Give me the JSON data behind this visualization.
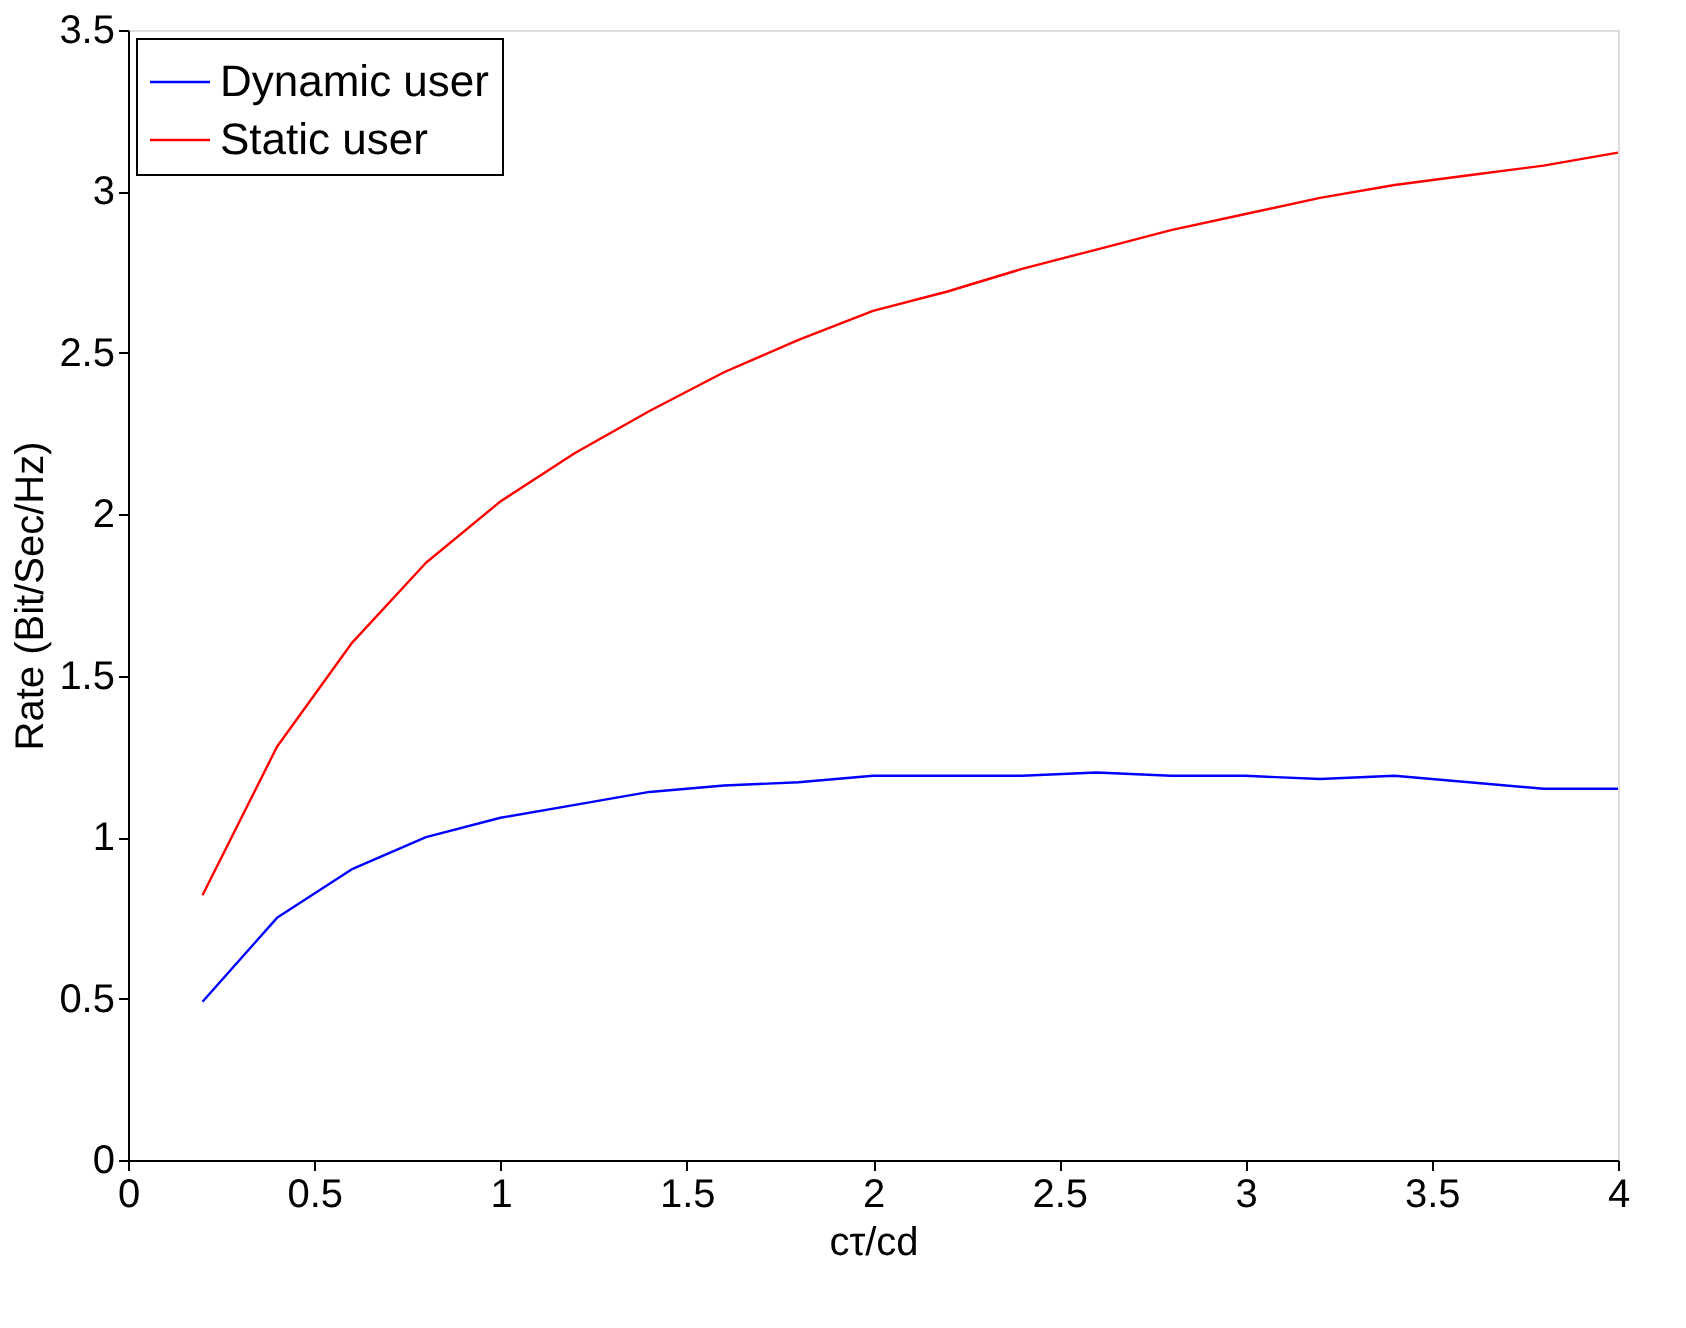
{
  "chart_data": {
    "type": "line",
    "xlabel": "cτ/cd",
    "ylabel": "Rate (Bit/Sec/Hz)",
    "x": [
      0.2,
      0.4,
      0.6,
      0.8,
      1.0,
      1.2,
      1.4,
      1.6,
      1.8,
      2.0,
      2.2,
      2.4,
      2.6,
      2.8,
      3.0,
      3.2,
      3.4,
      3.6,
      3.8,
      4.0
    ],
    "series": [
      {
        "name": "Dynamic user",
        "color": "#0000ff",
        "values": [
          0.49,
          0.75,
          0.9,
          1.0,
          1.06,
          1.1,
          1.14,
          1.16,
          1.17,
          1.19,
          1.19,
          1.19,
          1.2,
          1.19,
          1.19,
          1.18,
          1.19,
          1.17,
          1.15,
          1.15
        ]
      },
      {
        "name": "Static user",
        "color": "#ff0000",
        "values": [
          0.82,
          1.28,
          1.6,
          1.85,
          2.04,
          2.19,
          2.32,
          2.44,
          2.54,
          2.63,
          2.69,
          2.76,
          2.82,
          2.88,
          2.93,
          2.98,
          3.02,
          3.05,
          3.08,
          3.12
        ]
      }
    ],
    "xlim": [
      0,
      4
    ],
    "xticks": [
      0,
      0.5,
      1,
      1.5,
      2,
      2.5,
      3,
      3.5,
      4
    ],
    "ylim": [
      0,
      3.5
    ],
    "yticks": [
      0,
      0.5,
      1,
      1.5,
      2,
      2.5,
      3,
      3.5
    ],
    "grid": false,
    "legend": "top left",
    "marker": "none",
    "line_style": "solid"
  }
}
